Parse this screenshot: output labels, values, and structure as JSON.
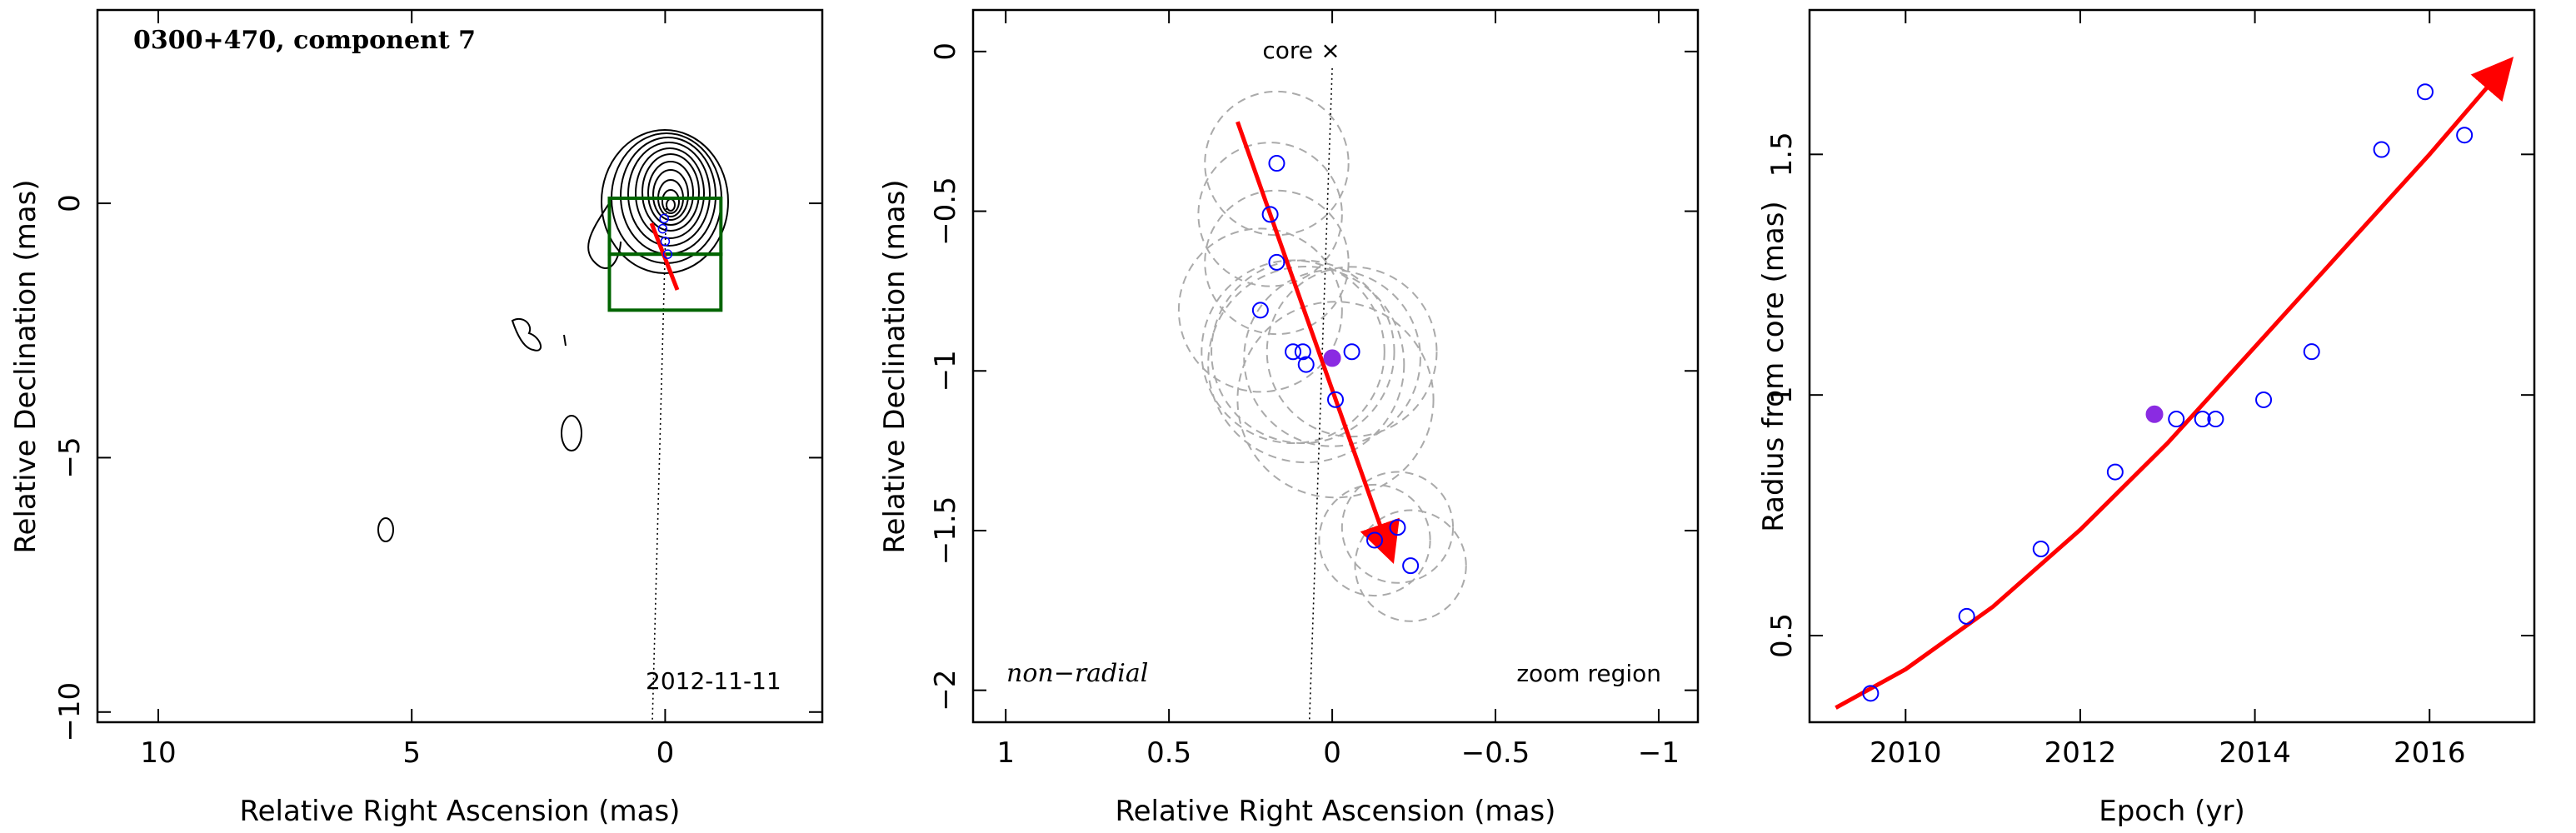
{
  "chart_data": [
    {
      "type": "contour",
      "title": "0300+470, component 7",
      "annotation": "2012-11-11",
      "xlabel": "Relative Right Ascension (mas)",
      "ylabel": "Relative Declination (mas)",
      "xlim": [
        11.2,
        -3.1
      ],
      "ylim": [
        -10.2,
        3.8
      ],
      "xticks": [
        10,
        5,
        0
      ],
      "yticks": [
        0,
        -5,
        -10
      ],
      "zoom_boxes": [
        {
          "x0": 1.1,
          "x1": -1.1,
          "y0": 0.1,
          "y1": -1.0
        },
        {
          "x0": 1.1,
          "x1": -1.1,
          "y0": -1.0,
          "y1": -2.1
        }
      ],
      "colors": {
        "contour": "#000000",
        "box": "#006400",
        "arrow": "#ff0000",
        "points": "#0000ff"
      }
    },
    {
      "type": "scatter",
      "xlabel": "Relative Right Ascension (mas)",
      "ylabel": "Relative Declination (mas)",
      "xlim": [
        1.1,
        -1.12
      ],
      "ylim": [
        -2.1,
        0.13
      ],
      "xticks": [
        1,
        0.5,
        0,
        -0.5,
        -1
      ],
      "xtick_labels": [
        "1",
        "0.5",
        "0",
        "−0.5",
        "−1"
      ],
      "yticks": [
        0,
        -0.5,
        -1,
        -1.5,
        -2
      ],
      "ytick_labels": [
        "0",
        "−0.5",
        "−1",
        "−1.5",
        "−2"
      ],
      "core_label": "core",
      "corner_left": "non−radial",
      "corner_right": "zoom region",
      "points": [
        {
          "x": 0.17,
          "y": -0.35,
          "r": 0.22
        },
        {
          "x": 0.19,
          "y": -0.51,
          "r": 0.22
        },
        {
          "x": 0.17,
          "y": -0.66,
          "r": 0.22
        },
        {
          "x": 0.22,
          "y": -0.81,
          "r": 0.25
        },
        {
          "x": 0.12,
          "y": -0.94,
          "r": 0.28
        },
        {
          "x": 0.09,
          "y": -0.94,
          "r": 0.28
        },
        {
          "x": 0.08,
          "y": -0.98,
          "r": 0.3
        },
        {
          "x": -0.06,
          "y": -0.94,
          "r": 0.26
        },
        {
          "x": -0.01,
          "y": -1.09,
          "r": 0.3
        },
        {
          "x": -0.13,
          "y": -1.53,
          "r": 0.17
        },
        {
          "x": -0.2,
          "y": -1.49,
          "r": 0.17
        },
        {
          "x": -0.24,
          "y": -1.61,
          "r": 0.17
        }
      ],
      "highlight": {
        "x": 0.0,
        "y": -0.96,
        "r": 0.27
      },
      "arrow": {
        "x_start": 0.29,
        "y_start": -0.22,
        "x_end": -0.18,
        "y_end": -1.58
      },
      "core_line": {
        "x_start": 0.0,
        "y_start": 0.0,
        "x_end": 0.07,
        "y_end": -2.1
      },
      "colors": {
        "points": "#0000ff",
        "highlight": "#8a2be2",
        "arrow": "#ff0000",
        "circles": "#aaaaaa"
      }
    },
    {
      "type": "scatter",
      "xlabel": "Epoch (yr)",
      "ylabel": "Radius from core (mas)",
      "xlim": [
        2008.9,
        2017.2
      ],
      "ylim": [
        0.32,
        1.8
      ],
      "xticks": [
        2010,
        2012,
        2014,
        2016
      ],
      "yticks": [
        0.5,
        1,
        1.5
      ],
      "points": [
        {
          "x": 2009.6,
          "y": 0.38
        },
        {
          "x": 2010.7,
          "y": 0.54
        },
        {
          "x": 2011.55,
          "y": 0.68
        },
        {
          "x": 2012.4,
          "y": 0.84
        },
        {
          "x": 2013.1,
          "y": 0.95
        },
        {
          "x": 2013.4,
          "y": 0.95
        },
        {
          "x": 2013.55,
          "y": 0.95
        },
        {
          "x": 2014.1,
          "y": 0.99
        },
        {
          "x": 2014.65,
          "y": 1.09
        },
        {
          "x": 2015.45,
          "y": 1.51
        },
        {
          "x": 2015.95,
          "y": 1.63
        },
        {
          "x": 2016.4,
          "y": 1.54
        }
      ],
      "highlight": {
        "x": 2012.85,
        "y": 0.96
      },
      "fit_curve": {
        "x": [
          2009.2,
          2010.0,
          2011.0,
          2012.0,
          2013.0,
          2014.0,
          2015.0,
          2016.0,
          2016.9
        ],
        "y": [
          0.35,
          0.43,
          0.56,
          0.72,
          0.9,
          1.1,
          1.3,
          1.5,
          1.69
        ]
      },
      "colors": {
        "points": "#0000ff",
        "highlight": "#8a2be2",
        "curve": "#ff0000"
      }
    }
  ]
}
